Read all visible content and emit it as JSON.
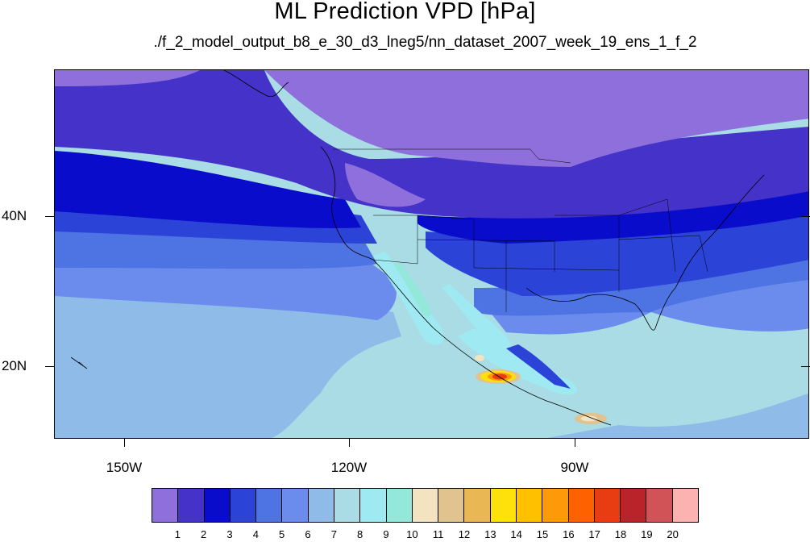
{
  "title": "ML Prediction VPD [hPa]",
  "subtitle": "./f_2_model_output_b8_e_30_d3_lneg5/nn_dataset_2007_week_19_ens_1_f_2",
  "lat_labels": [
    "40N",
    "20N"
  ],
  "lon_labels": [
    "150W",
    "120W",
    "90W"
  ],
  "legend": {
    "labels": [
      "1",
      "2",
      "3",
      "4",
      "5",
      "6",
      "7",
      "8",
      "9",
      "10",
      "11",
      "12",
      "13",
      "14",
      "15",
      "16",
      "17",
      "18",
      "19",
      "20"
    ],
    "colors": [
      "#8e6fdb",
      "#4532c8",
      "#0a0ccb",
      "#2c43d8",
      "#4e74e4",
      "#6b8cec",
      "#8fbbe8",
      "#a9dce5",
      "#9fe9f2",
      "#93e8d9",
      "#f3e3c0",
      "#e0c38e",
      "#e9b855",
      "#fce10a",
      "#ffc000",
      "#fe9a0a",
      "#fd6100",
      "#e83c12",
      "#b92329",
      "#d15357",
      "#fdb2b2"
    ]
  },
  "map": {
    "description_colors": {
      "c1": "#8e6fdb",
      "c2": "#4532c8",
      "c3": "#0a0ccb",
      "c4": "#2c43d8",
      "c5": "#4e74e4",
      "c6": "#6b8cec",
      "c7": "#8fbbe8",
      "c8": "#a9dce5",
      "c9": "#9fe9f2",
      "c10": "#93e8d9",
      "c11": "#f3e3c0",
      "c12": "#e0c38e",
      "c14": "#fce10a",
      "c16": "#fe9a0a",
      "c17": "#fd6100",
      "c18": "#e83c12"
    }
  }
}
